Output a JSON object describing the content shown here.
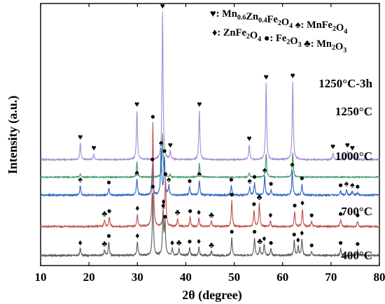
{
  "chart_data": {
    "type": "line",
    "xlabel": "2θ (degree)",
    "ylabel": "Intensity (a.u.)",
    "xlim": [
      10,
      80
    ],
    "xticks": [
      10,
      20,
      30,
      40,
      50,
      60,
      70,
      80
    ],
    "y_ticks_shown": false,
    "grid": false,
    "legend_position": "top",
    "legend": [
      {
        "symbol": "♥",
        "html": "Mn<sub>0.6</sub>Zn<sub>0.4</sub>Fe<sub>2</sub>O<sub>4</sub>",
        "text": "Mn0.6Zn0.4Fe2O4"
      },
      {
        "symbol": "♠",
        "html": "MnFe<sub>2</sub>O<sub>4</sub>",
        "text": "MnFe2O4"
      },
      {
        "symbol": "♦",
        "html": "ZnFe<sub>2</sub>O<sub>4</sub>",
        "text": "ZnFe2O4"
      },
      {
        "symbol": "●",
        "html": "Fe<sub>2</sub>O<sub>3</sub>",
        "text": "Fe2O3"
      },
      {
        "symbol": "♣",
        "html": "Mn<sub>2</sub>O<sub>3</sub>",
        "text": "Mn2O3"
      }
    ],
    "series": [
      {
        "name": "1250°C-3h",
        "color": "#a58ad6",
        "baseline": 0.88,
        "noise": 0.05,
        "peaks": [
          [
            18.2,
            0.6
          ],
          [
            21.0,
            0.2
          ],
          [
            29.9,
            1.8
          ],
          [
            35.2,
            5.4
          ],
          [
            36.8,
            0.3
          ],
          [
            42.8,
            1.8
          ],
          [
            53.1,
            0.55
          ],
          [
            56.6,
            2.8
          ],
          [
            62.1,
            2.85
          ],
          [
            70.4,
            0.25
          ],
          [
            73.4,
            0.3
          ],
          [
            74.4,
            0.2
          ]
        ],
        "markers": [
          {
            "x": 18.2,
            "symbol": "♥"
          },
          {
            "x": 21.0,
            "symbol": "♥"
          },
          {
            "x": 29.9,
            "symbol": "♥"
          },
          {
            "x": 35.2,
            "symbol": "♥"
          },
          {
            "x": 36.8,
            "symbol": "♥"
          },
          {
            "x": 42.8,
            "symbol": "♥"
          },
          {
            "x": 53.1,
            "symbol": "♥"
          },
          {
            "x": 56.6,
            "symbol": "♥"
          },
          {
            "x": 62.1,
            "symbol": "♥"
          },
          {
            "x": 70.4,
            "symbol": "♥"
          },
          {
            "x": 73.4,
            "symbol": "♥"
          },
          {
            "x": 74.4,
            "symbol": "♥"
          }
        ]
      },
      {
        "name": "1250°C",
        "color": "#3f9a6b",
        "baseline": 0.24,
        "noise": 0.04,
        "peaks": [
          [
            18.2,
            0.12
          ],
          [
            29.9,
            0.55
          ],
          [
            35.2,
            1.6
          ],
          [
            36.8,
            0.1
          ],
          [
            42.8,
            0.5
          ],
          [
            53.1,
            0.15
          ],
          [
            56.6,
            0.85
          ],
          [
            62.1,
            0.9
          ]
        ],
        "markers": []
      },
      {
        "name": "1000°C",
        "color": "#2f62c4",
        "baseline": -0.42,
        "noise": 0.06,
        "peaks": [
          [
            18.2,
            0.35
          ],
          [
            24.1,
            0.25
          ],
          [
            29.9,
            0.6
          ],
          [
            33.1,
            1.1
          ],
          [
            34.9,
            1.7
          ],
          [
            35.6,
            1.4
          ],
          [
            36.5,
            0.35
          ],
          [
            40.8,
            0.3
          ],
          [
            42.8,
            0.55
          ],
          [
            49.4,
            0.35
          ],
          [
            53.2,
            0.3
          ],
          [
            54.2,
            0.45
          ],
          [
            56.3,
            0.7
          ],
          [
            57.6,
            0.2
          ],
          [
            62.0,
            0.9
          ],
          [
            64.0,
            0.4
          ],
          [
            72.0,
            0.15
          ],
          [
            73.2,
            0.2
          ],
          [
            74.4,
            0.15
          ],
          [
            75.5,
            0.1
          ]
        ],
        "markers": [
          {
            "x": 18.2,
            "symbol": "♠"
          },
          {
            "x": 24.1,
            "symbol": "●"
          },
          {
            "x": 29.9,
            "symbol": "♠"
          },
          {
            "x": 33.1,
            "symbol": "●"
          },
          {
            "x": 34.9,
            "symbol": "♠"
          },
          {
            "x": 35.6,
            "symbol": "●"
          },
          {
            "x": 36.5,
            "symbol": "♠"
          },
          {
            "x": 40.8,
            "symbol": "●"
          },
          {
            "x": 42.8,
            "symbol": "♠"
          },
          {
            "x": 49.4,
            "symbol": "●"
          },
          {
            "x": 53.2,
            "symbol": "♠"
          },
          {
            "x": 54.2,
            "symbol": "●"
          },
          {
            "x": 56.3,
            "symbol": "♠"
          },
          {
            "x": 57.6,
            "symbol": "●"
          },
          {
            "x": 62.0,
            "symbol": "♠"
          },
          {
            "x": 64.0,
            "symbol": "●"
          },
          {
            "x": 72.0,
            "symbol": "●"
          },
          {
            "x": 73.2,
            "symbol": "♠"
          },
          {
            "x": 74.4,
            "symbol": "♠"
          },
          {
            "x": 75.5,
            "symbol": "●"
          }
        ]
      },
      {
        "name": "700°C",
        "color": "#c0524d",
        "baseline": -1.57,
        "noise": 0.06,
        "peaks": [
          [
            23.2,
            0.25
          ],
          [
            24.2,
            0.35
          ],
          [
            30.0,
            0.45
          ],
          [
            33.2,
            3.8
          ],
          [
            35.4,
            0.7
          ],
          [
            35.8,
            1.7
          ],
          [
            38.3,
            0.3
          ],
          [
            40.9,
            0.35
          ],
          [
            42.7,
            0.3
          ],
          [
            45.3,
            0.2
          ],
          [
            49.5,
            0.95
          ],
          [
            54.1,
            0.6
          ],
          [
            55.2,
            0.85
          ],
          [
            57.5,
            0.2
          ],
          [
            62.5,
            0.55
          ],
          [
            64.1,
            0.65
          ],
          [
            66.0,
            0.2
          ],
          [
            72.0,
            0.25
          ],
          [
            75.5,
            0.2
          ]
        ],
        "markers": [
          {
            "x": 23.2,
            "symbol": "♣"
          },
          {
            "x": 24.2,
            "symbol": "●"
          },
          {
            "x": 30.0,
            "symbol": "♦"
          },
          {
            "x": 33.2,
            "symbol": "●"
          },
          {
            "x": 35.4,
            "symbol": "♦"
          },
          {
            "x": 35.8,
            "symbol": "●"
          },
          {
            "x": 38.3,
            "symbol": "♣"
          },
          {
            "x": 40.9,
            "symbol": "●"
          },
          {
            "x": 42.7,
            "symbol": "♦"
          },
          {
            "x": 45.3,
            "symbol": "♣"
          },
          {
            "x": 49.5,
            "symbol": "●"
          },
          {
            "x": 54.1,
            "symbol": "●"
          },
          {
            "x": 55.2,
            "symbol": "♣"
          },
          {
            "x": 57.5,
            "symbol": "♦"
          },
          {
            "x": 62.5,
            "symbol": "●"
          },
          {
            "x": 64.1,
            "symbol": "♦"
          },
          {
            "x": 66.0,
            "symbol": "●"
          },
          {
            "x": 72.0,
            "symbol": "●"
          },
          {
            "x": 75.5,
            "symbol": "●"
          }
        ]
      },
      {
        "name": "400°C",
        "color": "#5a5a5a",
        "baseline": -2.63,
        "noise": 0.06,
        "peaks": [
          [
            18.2,
            0.25
          ],
          [
            23.2,
            0.2
          ],
          [
            24.1,
            0.5
          ],
          [
            30.0,
            0.5
          ],
          [
            33.2,
            2.3
          ],
          [
            35.3,
            1.6
          ],
          [
            35.7,
            1.2
          ],
          [
            37.2,
            0.25
          ],
          [
            38.6,
            0.25
          ],
          [
            40.8,
            0.3
          ],
          [
            42.7,
            0.3
          ],
          [
            45.3,
            0.15
          ],
          [
            49.5,
            0.65
          ],
          [
            54.2,
            0.65
          ],
          [
            55.3,
            0.3
          ],
          [
            56.2,
            0.4
          ],
          [
            57.6,
            0.25
          ],
          [
            62.4,
            0.55
          ],
          [
            63.2,
            0.35
          ],
          [
            64.0,
            0.6
          ],
          [
            66.0,
            0.15
          ],
          [
            72.0,
            0.25
          ],
          [
            75.5,
            0.2
          ]
        ],
        "markers": [
          {
            "x": 18.2,
            "symbol": "♦"
          },
          {
            "x": 23.2,
            "symbol": "♣"
          },
          {
            "x": 24.1,
            "symbol": "●"
          },
          {
            "x": 30.0,
            "symbol": "♦"
          },
          {
            "x": 33.2,
            "symbol": "●"
          },
          {
            "x": 35.3,
            "symbol": "♦"
          },
          {
            "x": 35.7,
            "symbol": "●"
          },
          {
            "x": 37.2,
            "symbol": "♦"
          },
          {
            "x": 38.6,
            "symbol": "♣"
          },
          {
            "x": 40.8,
            "symbol": "●"
          },
          {
            "x": 42.7,
            "symbol": "♦"
          },
          {
            "x": 45.3,
            "symbol": "♣"
          },
          {
            "x": 49.5,
            "symbol": "●"
          },
          {
            "x": 54.2,
            "symbol": "●"
          },
          {
            "x": 55.3,
            "symbol": "♣"
          },
          {
            "x": 56.2,
            "symbol": "♦"
          },
          {
            "x": 57.6,
            "symbol": "●"
          },
          {
            "x": 62.4,
            "symbol": "●"
          },
          {
            "x": 63.2,
            "symbol": "♦"
          },
          {
            "x": 64.0,
            "symbol": "♦"
          },
          {
            "x": 66.0,
            "symbol": "●"
          },
          {
            "x": 72.0,
            "symbol": "●"
          },
          {
            "x": 75.5,
            "symbol": "●"
          }
        ]
      }
    ]
  }
}
